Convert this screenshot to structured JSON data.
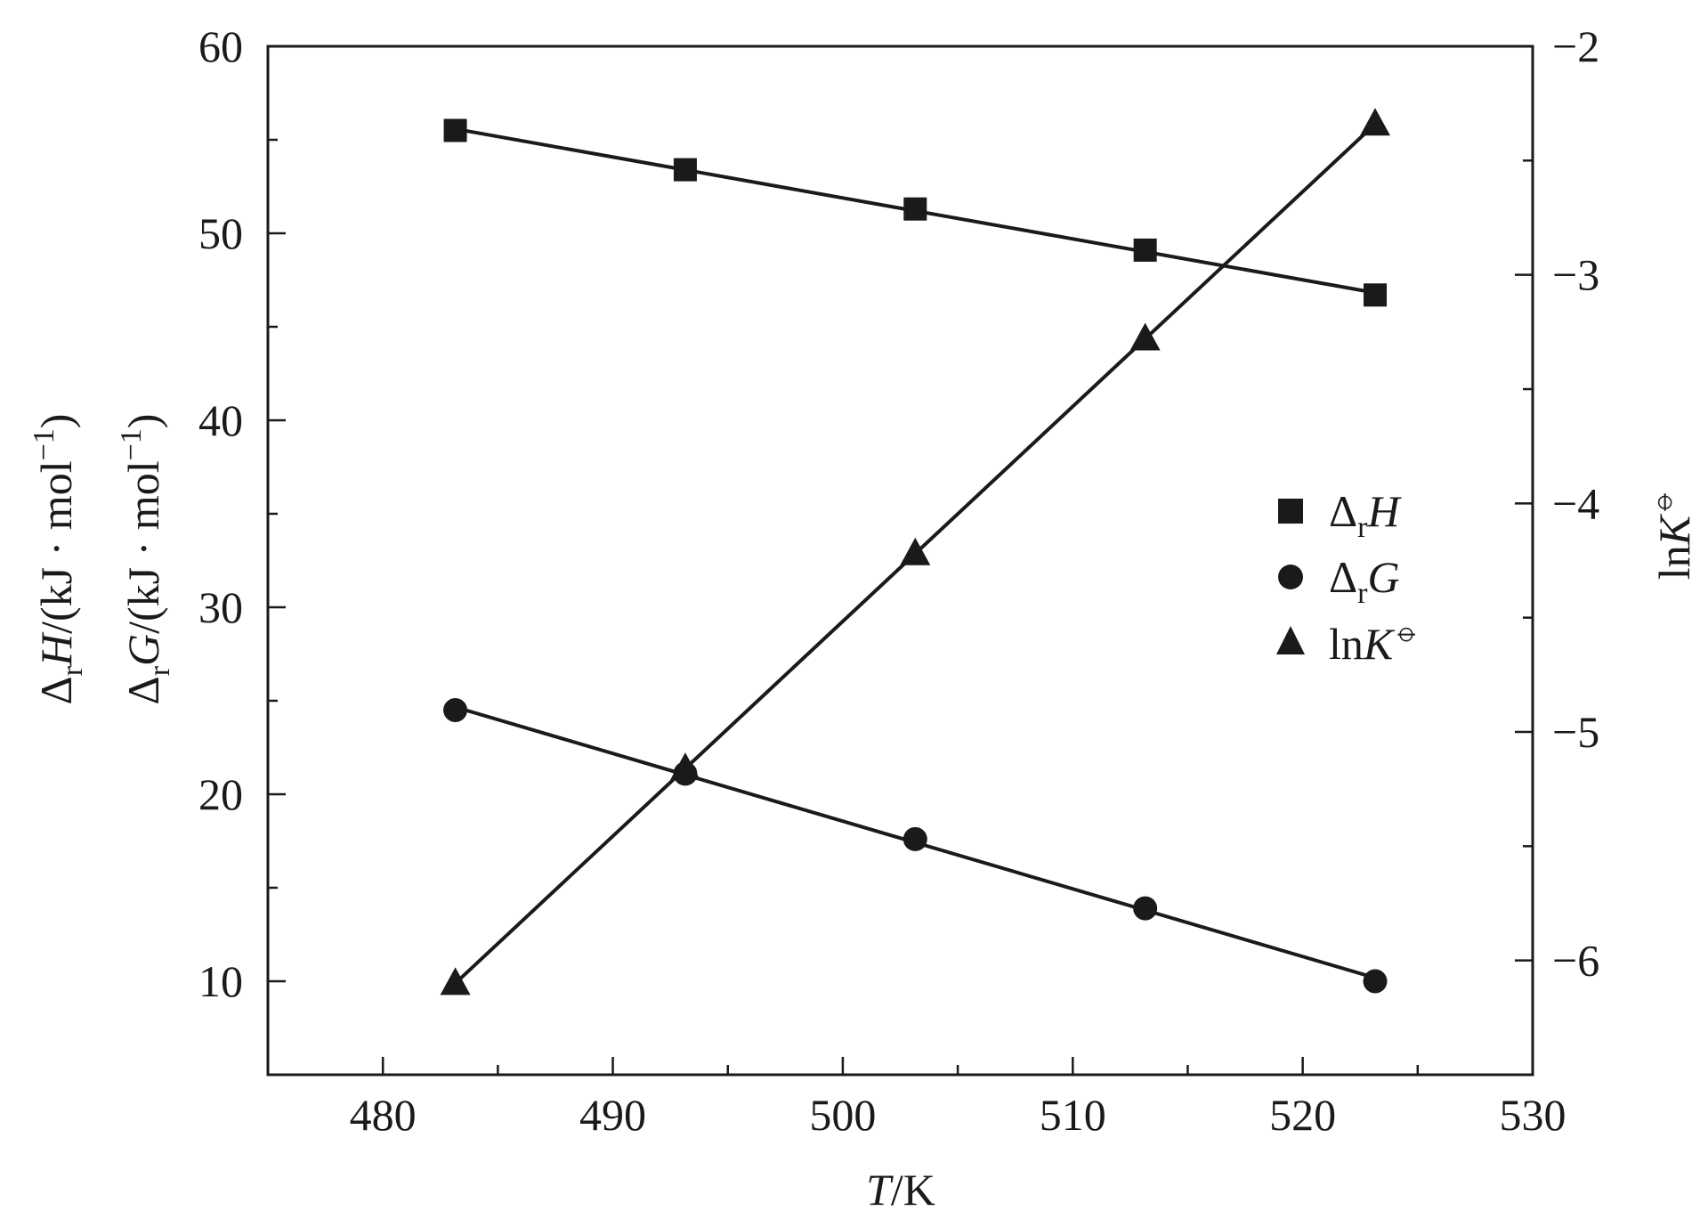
{
  "chart_data": {
    "type": "line",
    "x": [
      483.15,
      493.15,
      503.15,
      513.15,
      523.15
    ],
    "xlim": [
      475,
      530
    ],
    "ylim_left": [
      5,
      60
    ],
    "ylim_right": [
      -6.5,
      -2
    ],
    "x_ticks": [
      "480",
      "490",
      "500",
      "510",
      "520",
      "530"
    ],
    "y_left_ticks": [
      "10",
      "20",
      "30",
      "40",
      "50",
      "60"
    ],
    "y_right_ticks": [
      "−6",
      "−5",
      "−4",
      "−3",
      "−2"
    ],
    "xlabel": {
      "italic": "T",
      "rest": "/K"
    },
    "ylabel_left_1": {
      "delta": "Δ",
      "sub": "r",
      "italic": "H",
      "rest": "/(kJ · mol",
      "sup": "−1",
      "close": ")"
    },
    "ylabel_left_2": {
      "delta": "Δ",
      "sub": "r",
      "italic": "G",
      "rest": "/(kJ · mol",
      "sup": "−1",
      "close": ")"
    },
    "ylabel_right": {
      "ln": "ln",
      "italic": "K",
      "sup": "⦵"
    },
    "legend_position": "right-middle",
    "grid": false,
    "series": [
      {
        "name": "ΔrH",
        "name_parts": {
          "delta": "Δ",
          "sub": "r",
          "italic": "H"
        },
        "marker": "square",
        "axis": "left",
        "values": [
          55.5,
          53.4,
          51.3,
          49.1,
          46.7
        ]
      },
      {
        "name": "ΔrG",
        "name_parts": {
          "delta": "Δ",
          "sub": "r",
          "italic": "G"
        },
        "marker": "circle",
        "axis": "left",
        "values": [
          24.5,
          21.1,
          17.6,
          13.9,
          10.0
        ]
      },
      {
        "name": "lnK⦵",
        "name_parts": {
          "ln": "ln",
          "italic": "K",
          "sup": "⦵"
        },
        "marker": "triangle",
        "axis": "right",
        "values": [
          -6.1,
          -5.16,
          -4.22,
          -3.28,
          -2.34
        ]
      }
    ]
  },
  "colors": {
    "ink": "#1a1a1a",
    "background": "#ffffff"
  }
}
